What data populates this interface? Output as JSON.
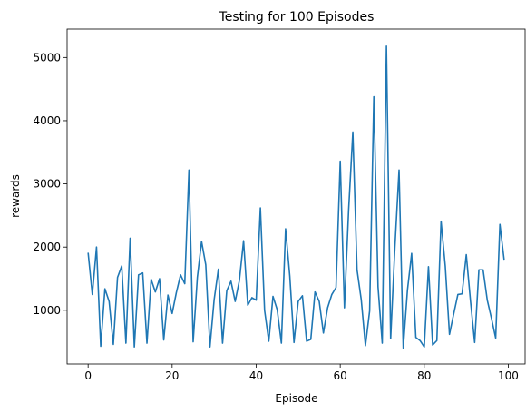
{
  "chart_data": {
    "type": "line",
    "title": "Testing for 100 Episodes",
    "xlabel": "Episode",
    "ylabel": "rewards",
    "xlim": [
      -5,
      104
    ],
    "ylim": [
      150,
      5450
    ],
    "xticks": [
      0,
      20,
      40,
      60,
      80,
      100
    ],
    "yticks": [
      1000,
      2000,
      3000,
      4000,
      5000
    ],
    "grid": false,
    "line_color": "#1f77b4",
    "series": [
      {
        "x": [
          0,
          1,
          2,
          3,
          4,
          5,
          6,
          7,
          8,
          9,
          10,
          11,
          12,
          13,
          14,
          15,
          16,
          17,
          18,
          19,
          20,
          21,
          22,
          23,
          24,
          25,
          26,
          27,
          28,
          29,
          30,
          31,
          32,
          33,
          34,
          35,
          36,
          37,
          38,
          39,
          40,
          41,
          42,
          43,
          44,
          45,
          46,
          47,
          48,
          49,
          50,
          51,
          52,
          53,
          54,
          55,
          56,
          57,
          58,
          59,
          60,
          61,
          62,
          63,
          64,
          65,
          66,
          67,
          68,
          69,
          70,
          71,
          72,
          73,
          74,
          75,
          76,
          77,
          78,
          79,
          80,
          81,
          82,
          83,
          84,
          85,
          86,
          87,
          88,
          89,
          90,
          91,
          92,
          93,
          94,
          95,
          96,
          97,
          98,
          99
        ],
        "values": [
          1910,
          1250,
          2000,
          430,
          1340,
          1140,
          460,
          1520,
          1700,
          480,
          2140,
          420,
          1560,
          1590,
          480,
          1490,
          1290,
          1500,
          530,
          1240,
          950,
          1280,
          1560,
          1420,
          3220,
          500,
          1520,
          2090,
          1720,
          420,
          1170,
          1650,
          480,
          1310,
          1460,
          1140,
          1470,
          2100,
          1080,
          1200,
          1160,
          2620,
          1000,
          510,
          1220,
          1010,
          480,
          2290,
          1540,
          490,
          1140,
          1230,
          510,
          540,
          1290,
          1140,
          640,
          1040,
          1250,
          1360,
          3360,
          1040,
          2590,
          3820,
          1640,
          1170,
          440,
          990,
          4380,
          1370,
          480,
          5180,
          550,
          1980,
          3220,
          400,
          1320,
          1900,
          570,
          520,
          420,
          1690,
          450,
          520,
          2410,
          1700,
          620,
          940,
          1250,
          1260,
          1880,
          1150,
          490,
          1640,
          1640,
          1160,
          870,
          560,
          2360,
          1800
        ]
      }
    ]
  }
}
